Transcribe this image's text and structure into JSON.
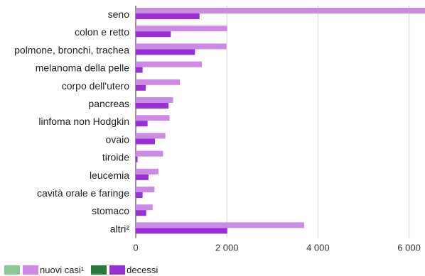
{
  "chart_data": {
    "type": "bar",
    "orientation": "horizontal",
    "title": "",
    "xlabel": "",
    "ylabel": "",
    "categories": [
      "seno",
      "colon e retto",
      "polmone, bronchi, trachea",
      "melanoma della pelle",
      "corpo dell'utero",
      "pancreas",
      "linfoma non Hodgkin",
      "ovaio",
      "tiroide",
      "leucemia",
      "cavità orale e faringe",
      "stomaco",
      "altri²"
    ],
    "series": [
      {
        "name": "nuovi casi¹",
        "color": "#cc8ae6",
        "legend_swatch_colors": [
          "#86c997",
          "#cc8ae6"
        ],
        "values": [
          6350,
          2010,
          1990,
          1450,
          970,
          820,
          740,
          650,
          600,
          500,
          410,
          370,
          3700
        ]
      },
      {
        "name": "decessi",
        "color": "#9b2fd6",
        "legend_swatch_colors": [
          "#2b7a3b",
          "#9b2fd6"
        ],
        "values": [
          1400,
          770,
          1300,
          150,
          220,
          720,
          260,
          420,
          40,
          280,
          150,
          230,
          2010
        ]
      }
    ],
    "xlim": [
      0,
      6350
    ],
    "x_ticks": [
      0,
      2000,
      4000,
      6000
    ],
    "x_tick_labels": [
      "0",
      "2 000",
      "4 000",
      "6 000"
    ],
    "grid": true,
    "legend_position": "bottom-left"
  }
}
